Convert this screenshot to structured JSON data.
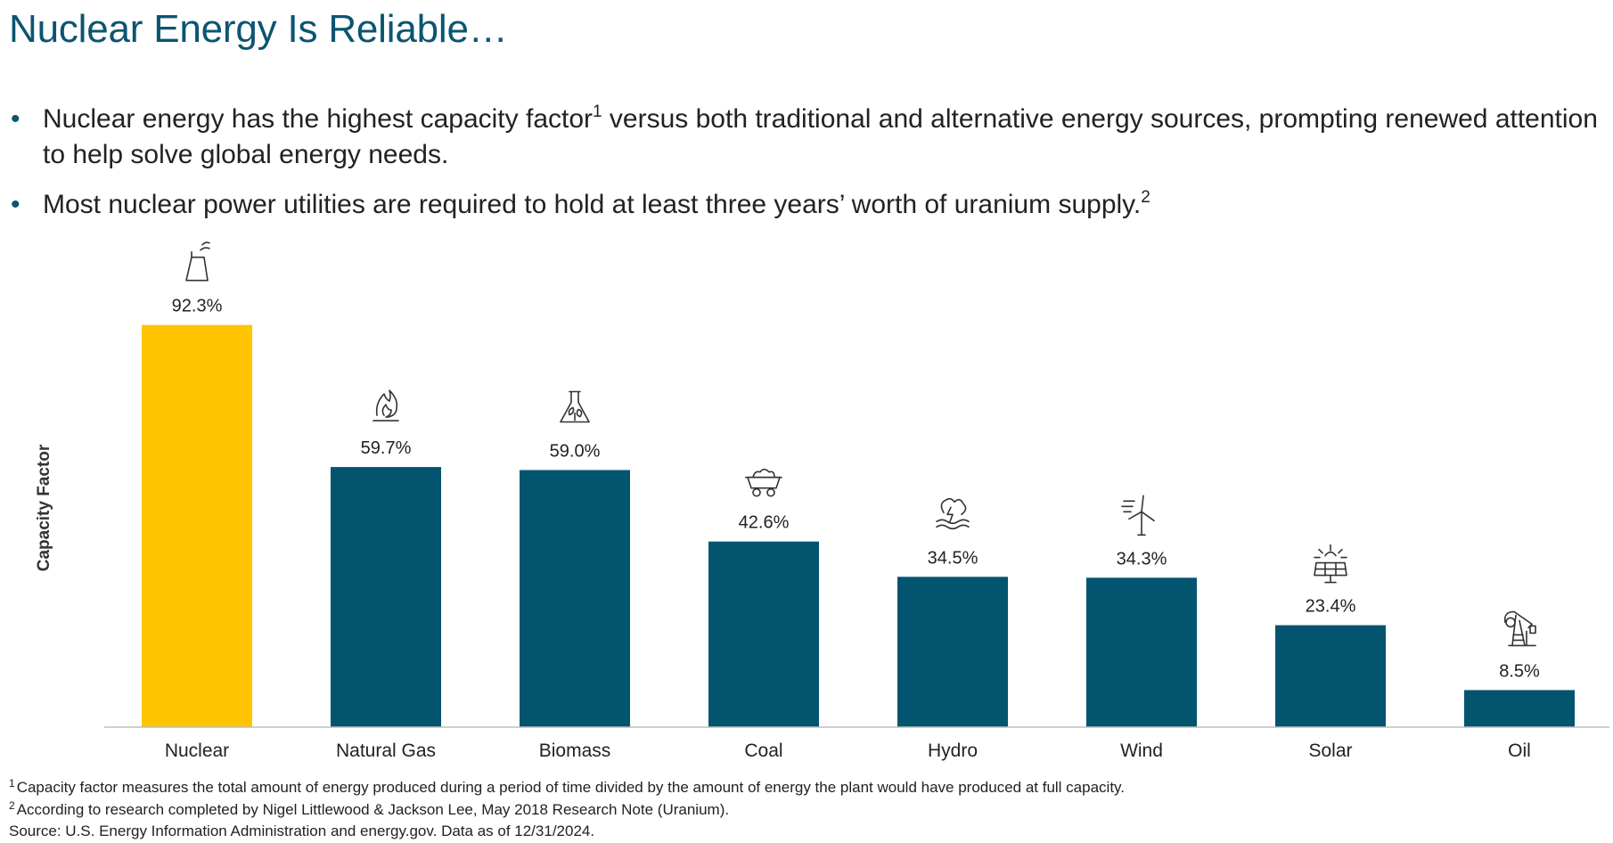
{
  "title": "Nuclear Energy Is Reliable…",
  "bullets": [
    {
      "text_a": "Nuclear energy has the highest capacity factor",
      "sup": "1",
      "text_b": " versus both traditional and alternative energy sources, prompting renewed attention to help solve global energy needs."
    },
    {
      "text_a": "Most nuclear power utilities are required to hold at least three years’ worth of uranium supply.",
      "sup": "2",
      "text_b": ""
    }
  ],
  "bullet_marker": "•",
  "colors": {
    "title": "#0b5571",
    "highlight": "#ffc400",
    "bar": "#03546f",
    "axis": "#bfbfbf"
  },
  "chart_data": {
    "type": "bar",
    "title": "",
    "xlabel": "",
    "ylabel": "Capacity Factor",
    "categories": [
      "Nuclear",
      "Natural Gas",
      "Biomass",
      "Coal",
      "Hydro",
      "Wind",
      "Solar",
      "Oil"
    ],
    "values": [
      92.3,
      59.7,
      59.0,
      42.6,
      34.5,
      34.3,
      23.4,
      8.5
    ],
    "data_labels": [
      "92.3%",
      "59.7%",
      "59.0%",
      "42.6%",
      "34.5%",
      "34.3%",
      "23.4%",
      "8.5%"
    ],
    "icons": [
      "nuclear-plant-icon",
      "gas-flame-icon",
      "biomass-flask-icon",
      "coal-cart-icon",
      "hydro-water-icon",
      "wind-turbine-icon",
      "solar-panel-icon",
      "oil-pump-icon"
    ],
    "highlight_index": 0,
    "ylim": [
      0,
      100
    ],
    "grid": false
  },
  "footnotes": [
    {
      "sup": "1",
      "text": "Capacity factor measures the total amount of energy produced during a period of time divided by the amount of energy the plant would have produced at full capacity."
    },
    {
      "sup": "2",
      "text": "According to research completed by Nigel Littlewood & Jackson Lee, May 2018 Research Note (Uranium)."
    }
  ],
  "source": "Source: U.S. Energy Information Administration and energy.gov. Data as of 12/31/2024."
}
